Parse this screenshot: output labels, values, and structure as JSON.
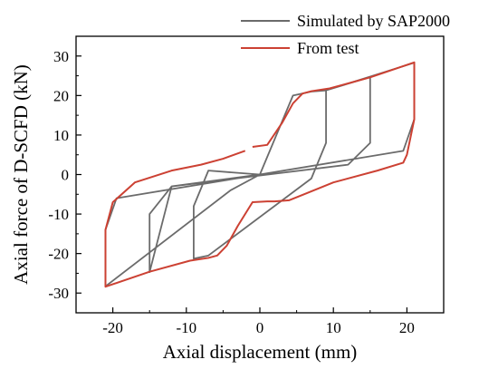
{
  "chart_data": {
    "type": "line",
    "xlabel": "Axial displacement (mm)",
    "ylabel": "Axial force of D-SCFD (kN)",
    "xlim": [
      -25,
      25
    ],
    "ylim": [
      -35,
      35
    ],
    "xticks": [
      -20,
      -10,
      0,
      10,
      20
    ],
    "yticks": [
      -30,
      -20,
      -10,
      0,
      10,
      20,
      30
    ],
    "grid": false,
    "legend_position": "top-right",
    "series": [
      {
        "name": "Simulated by SAP2000",
        "color": "#6b6b6b",
        "x": [
          0,
          4.5,
          7,
          9,
          9,
          7,
          -7,
          -9,
          -9,
          -7,
          0,
          4.5,
          7,
          9,
          15,
          15,
          12,
          -12,
          -15,
          -15,
          -12,
          0,
          4.5,
          7,
          9,
          21,
          21,
          19.5,
          -19.5,
          -21,
          -21,
          -4,
          0
        ],
        "y": [
          0,
          20,
          21,
          21.3,
          8,
          -1,
          -20.5,
          -21.3,
          -8,
          1,
          0,
          20,
          21,
          21.3,
          24.7,
          8,
          2.5,
          -3,
          -24.7,
          -10,
          -3,
          0,
          20,
          21,
          21.3,
          28.3,
          14,
          6,
          -6,
          -14,
          -28.3,
          -4,
          0
        ]
      },
      {
        "name": "From test",
        "color": "#cc4133",
        "x": [
          -1,
          1,
          3,
          4.5,
          5.8,
          7,
          9.5,
          15,
          21,
          21,
          20,
          19.5,
          16,
          10,
          6,
          4,
          2,
          1,
          -1,
          -3,
          -4.5,
          -5.8,
          -7,
          -9.5,
          -15,
          -21,
          -21,
          -20,
          -17,
          -12,
          -8,
          -5,
          -2
        ],
        "y": [
          7,
          7.5,
          13,
          18,
          20.5,
          21.1,
          21.8,
          24.6,
          28.4,
          14,
          5,
          3,
          1,
          -2,
          -5,
          -6.5,
          -6.8,
          -6.8,
          -7,
          -13,
          -18,
          -20.5,
          -21.1,
          -21.8,
          -24.6,
          -28.4,
          -14,
          -7,
          -2,
          1,
          2.5,
          4,
          6
        ]
      }
    ]
  }
}
